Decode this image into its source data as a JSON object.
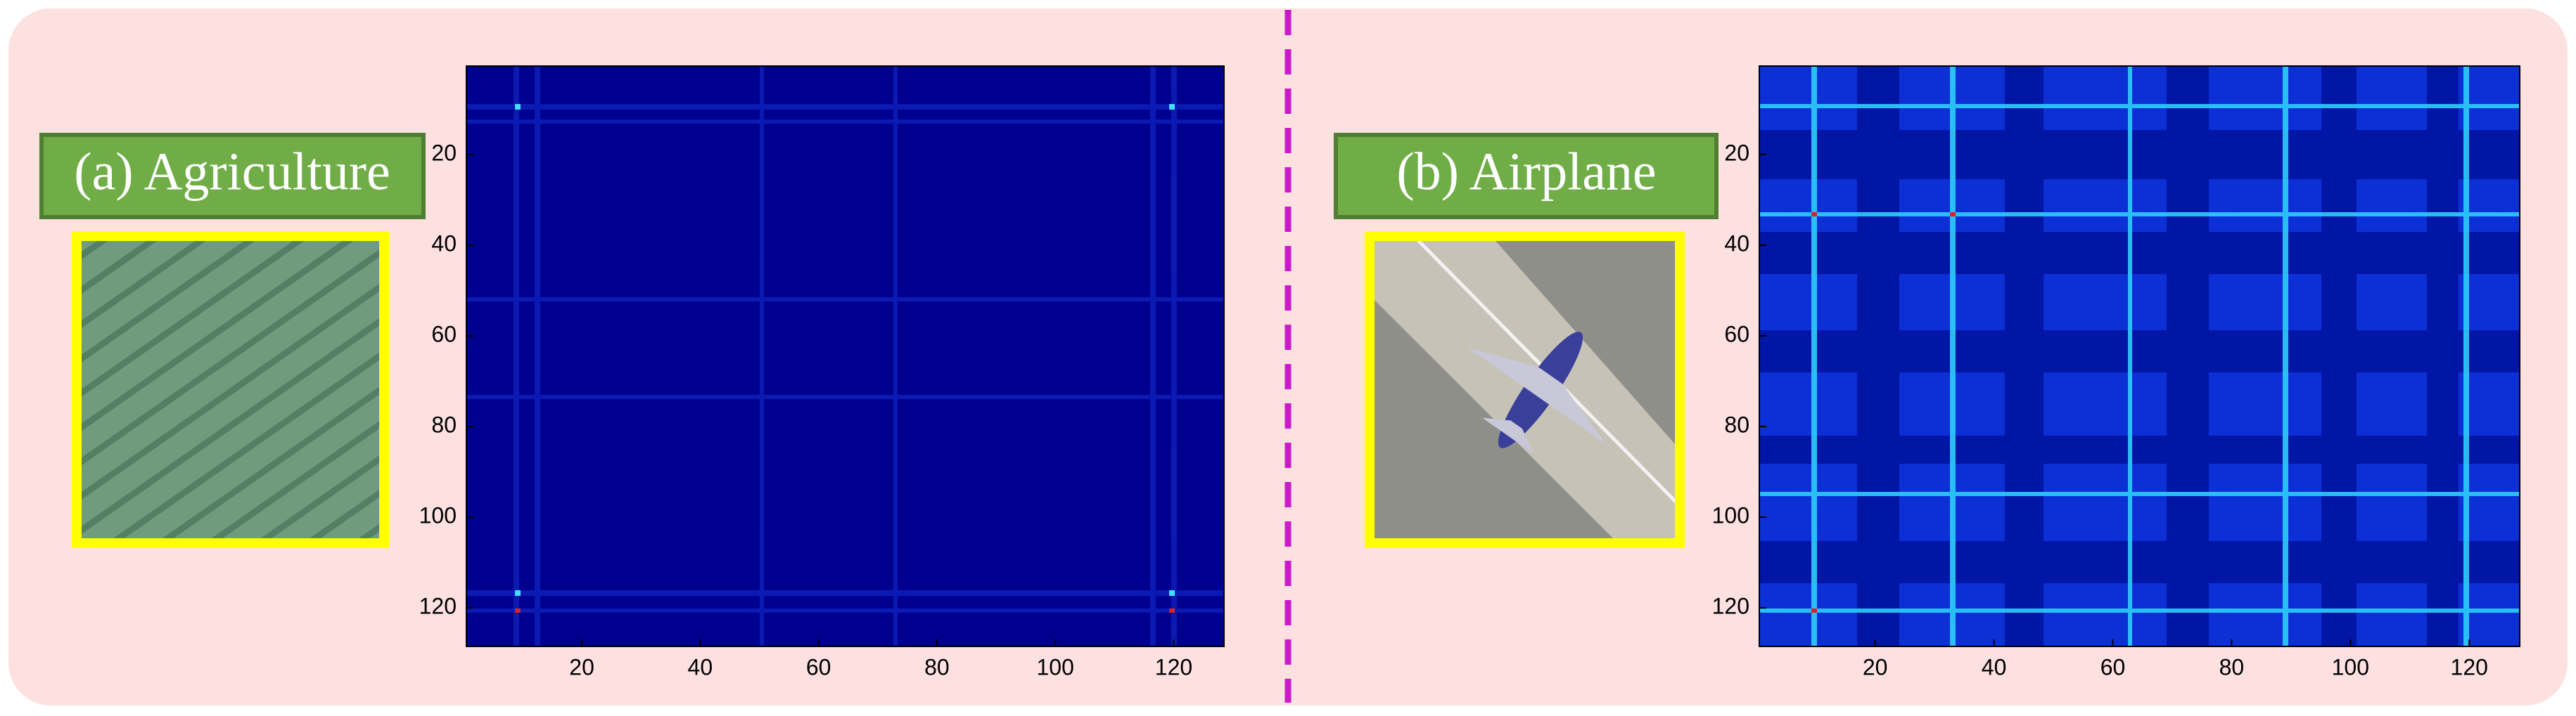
{
  "panels": [
    {
      "label": "(a) Agriculture",
      "heatmap": {
        "xlim": [
          0.5,
          128.5
        ],
        "ylim": [
          0.5,
          128.5
        ],
        "xticks": [
          20,
          40,
          60,
          80,
          100,
          120
        ],
        "yticks": [
          20,
          40,
          60,
          80,
          100,
          120
        ]
      }
    },
    {
      "label": "(b) Airplane",
      "heatmap": {
        "xlim": [
          0.5,
          128.5
        ],
        "ylim": [
          0.5,
          128.5
        ],
        "xticks": [
          20,
          40,
          60,
          80,
          100,
          120
        ],
        "yticks": [
          20,
          40,
          60,
          80,
          100,
          120
        ]
      }
    }
  ]
}
